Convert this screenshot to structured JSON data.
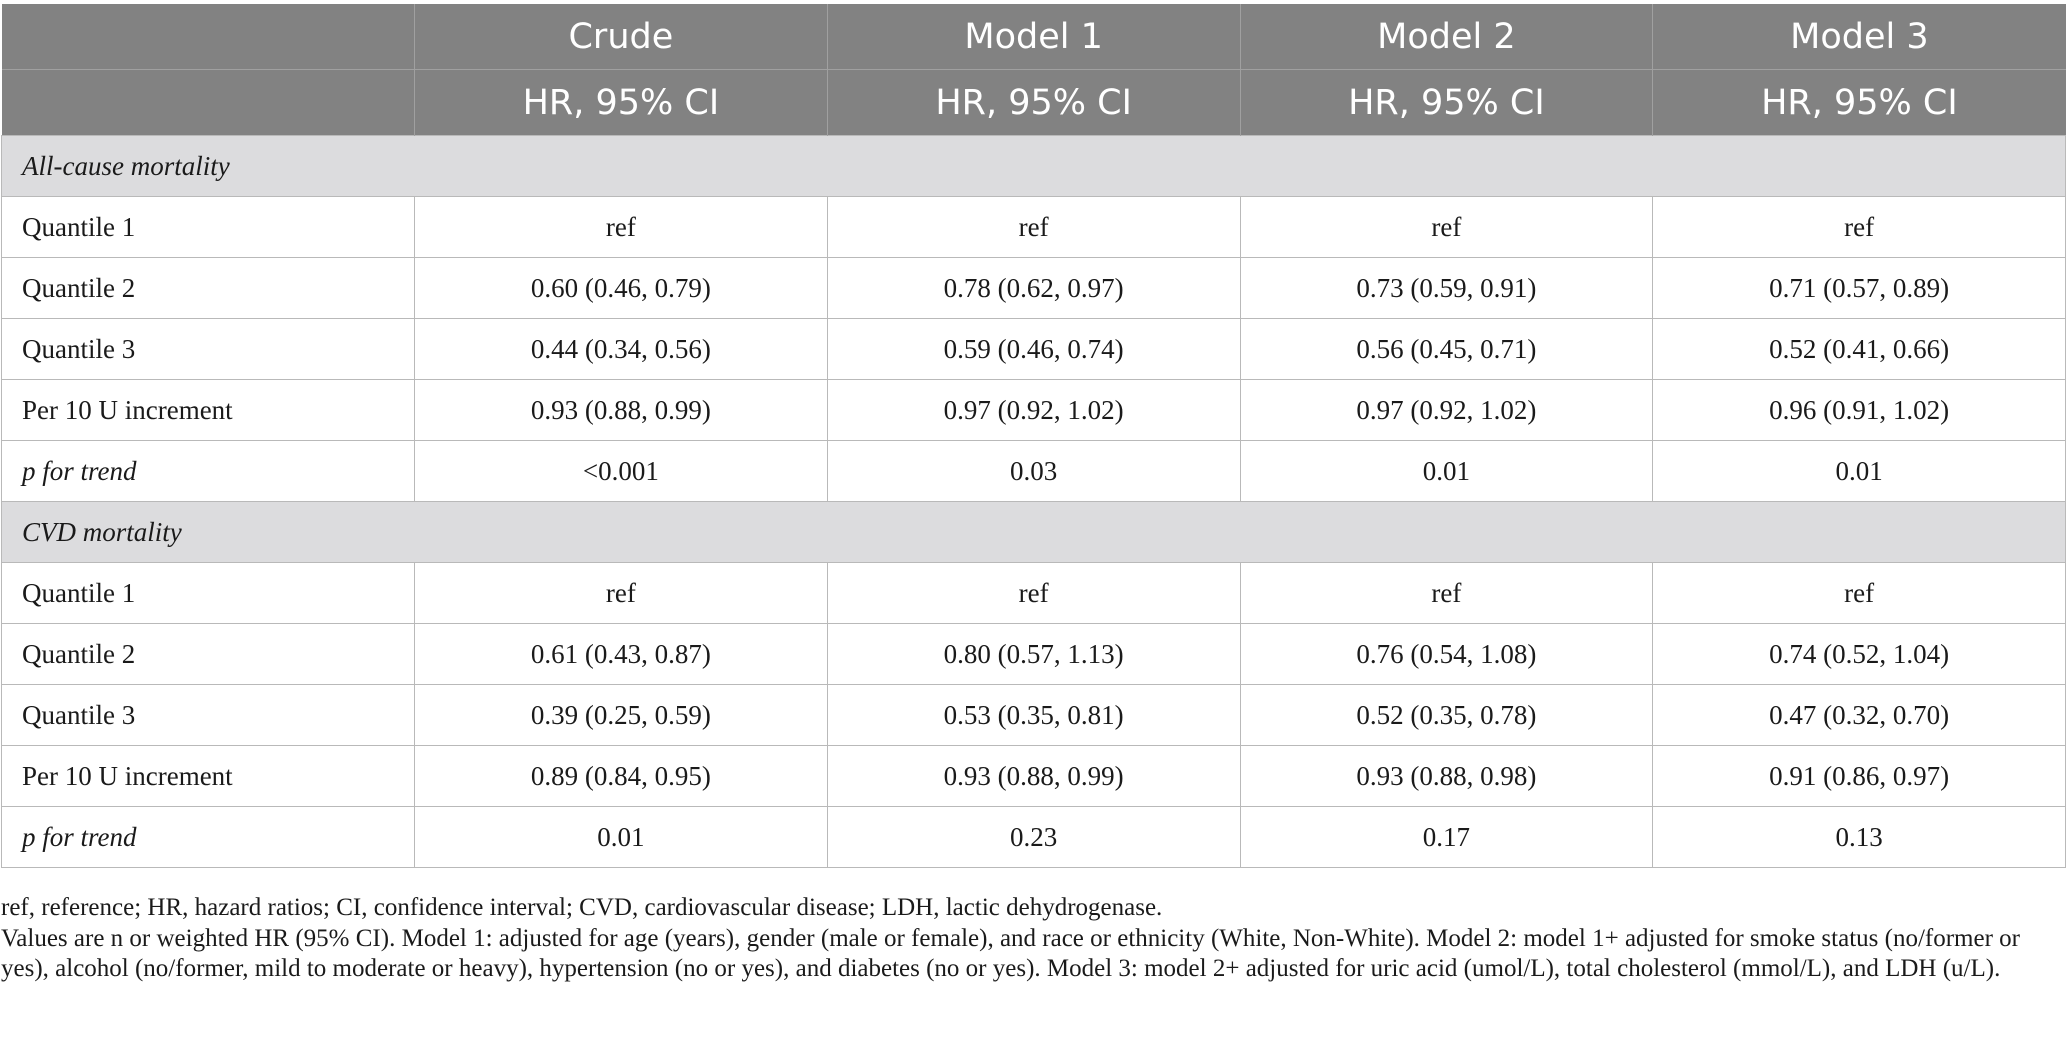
{
  "header": {
    "columns": [
      "",
      "Crude",
      "Model 1",
      "Model 2",
      "Model 3"
    ],
    "subheader": [
      "",
      "HR, 95% CI",
      "HR, 95% CI",
      "HR, 95% CI",
      "HR, 95% CI"
    ]
  },
  "sections": [
    {
      "title": "All-cause mortality",
      "rows": [
        {
          "label": "Quantile 1",
          "values": [
            "ref",
            "ref",
            "ref",
            "ref"
          ]
        },
        {
          "label": "Quantile 2",
          "values": [
            "0.60 (0.46, 0.79)",
            "0.78 (0.62, 0.97)",
            "0.73 (0.59, 0.91)",
            "0.71 (0.57, 0.89)"
          ]
        },
        {
          "label": "Quantile 3",
          "values": [
            "0.44 (0.34, 0.56)",
            "0.59 (0.46, 0.74)",
            "0.56 (0.45, 0.71)",
            "0.52 (0.41, 0.66)"
          ]
        },
        {
          "label": "Per 10 U increment",
          "values": [
            "0.93 (0.88, 0.99)",
            "0.97 (0.92, 1.02)",
            "0.97 (0.92, 1.02)",
            "0.96 (0.91, 1.02)"
          ]
        },
        {
          "label": "p for trend",
          "values": [
            "<0.001",
            "0.03",
            "0.01",
            "0.01"
          ]
        }
      ]
    },
    {
      "title": "CVD mortality",
      "rows": [
        {
          "label": "Quantile 1",
          "values": [
            "ref",
            "ref",
            "ref",
            "ref"
          ]
        },
        {
          "label": "Quantile 2",
          "values": [
            "0.61 (0.43, 0.87)",
            "0.80 (0.57, 1.13)",
            "0.76 (0.54, 1.08)",
            "0.74 (0.52, 1.04)"
          ]
        },
        {
          "label": "Quantile 3",
          "values": [
            "0.39 (0.25, 0.59)",
            "0.53 (0.35, 0.81)",
            "0.52 (0.35, 0.78)",
            "0.47 (0.32, 0.70)"
          ]
        },
        {
          "label": "Per 10 U increment",
          "values": [
            "0.89 (0.84, 0.95)",
            "0.93 (0.88, 0.99)",
            "0.93 (0.88, 0.98)",
            "0.91 (0.86, 0.97)"
          ]
        },
        {
          "label": "p for trend",
          "values": [
            "0.01",
            "0.23",
            "0.17",
            "0.13"
          ]
        }
      ]
    }
  ],
  "footnotes": {
    "abbreviations": "ref, reference; HR, hazard ratios; CI, confidence interval; CVD, cardiovascular disease; LDH, lactic dehydrogenase.",
    "models": "Values are n or weighted HR (95% CI). Model 1: adjusted for age (years), gender (male or female), and race or ethnicity (White, Non-White). Model 2: model 1+ adjusted for smoke status (no/former or yes), alcohol (no/former, mild to moderate or heavy), hypertension (no or yes), and diabetes (no or yes). Model 3: model 2+ adjusted for uric acid (umol/L), total cholesterol (mmol/L), and LDH (u/L)."
  },
  "colors": {
    "header_bg": "#828282",
    "section_bg": "#dcdcde",
    "border": "#b9b9b9"
  }
}
